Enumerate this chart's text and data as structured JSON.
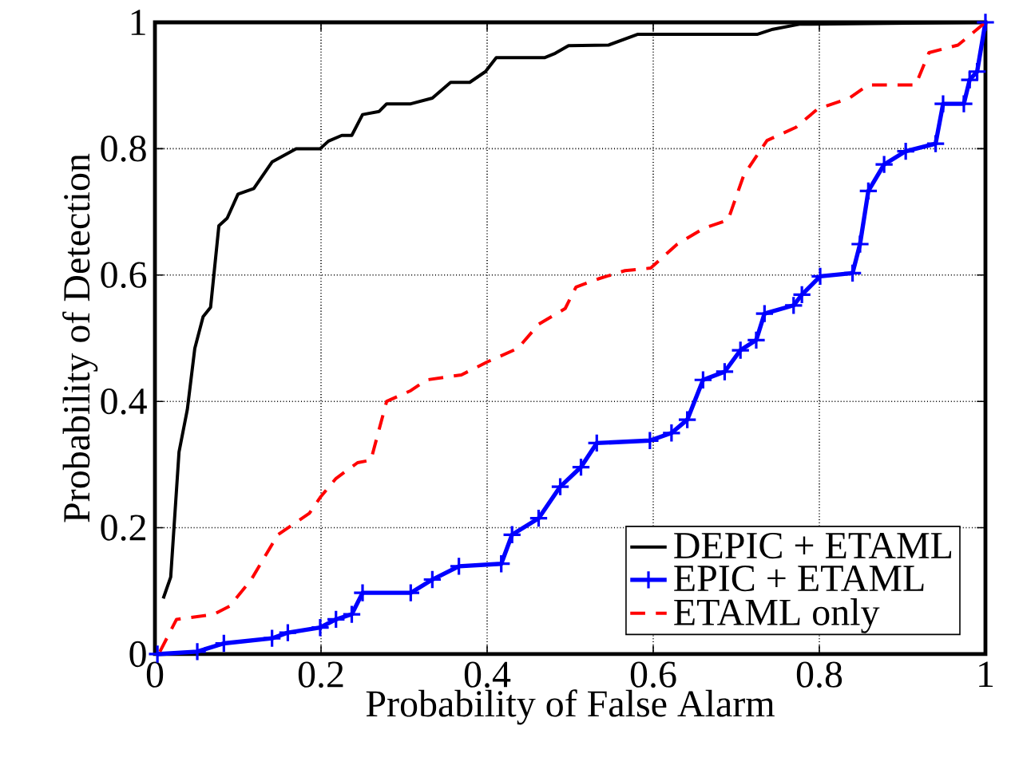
{
  "chart_data": {
    "type": "line",
    "xlabel": "Probability of False Alarm",
    "ylabel": "Probability of Detection",
    "xlim": [
      0,
      1
    ],
    "ylim": [
      0,
      1
    ],
    "xticks": [
      0,
      0.2,
      0.4,
      0.6,
      0.8,
      1
    ],
    "yticks": [
      0,
      0.2,
      0.4,
      0.6,
      0.8,
      1
    ],
    "grid": true,
    "legend": "bottom right",
    "series": [
      {
        "name": "DEPIC + ETAML",
        "color": "#000000",
        "line_style": "solid",
        "marker": "none",
        "x": [
          0.01,
          0.019,
          0.029,
          0.039,
          0.048,
          0.058,
          0.067,
          0.077,
          0.087,
          0.1,
          0.119,
          0.141,
          0.17,
          0.199,
          0.209,
          0.225,
          0.237,
          0.25,
          0.27,
          0.279,
          0.308,
          0.334,
          0.356,
          0.379,
          0.398,
          0.411,
          0.469,
          0.482,
          0.498,
          0.546,
          0.581,
          0.725,
          0.744,
          0.776,
          1
        ],
        "values": [
          0.088,
          0.122,
          0.32,
          0.387,
          0.484,
          0.534,
          0.549,
          0.678,
          0.69,
          0.728,
          0.737,
          0.779,
          0.8,
          0.8,
          0.812,
          0.821,
          0.821,
          0.854,
          0.859,
          0.871,
          0.871,
          0.88,
          0.905,
          0.905,
          0.922,
          0.944,
          0.944,
          0.951,
          0.963,
          0.964,
          0.981,
          0.981,
          0.989,
          0.997,
          1
        ]
      },
      {
        "name": "EPIC + ETAML",
        "color": "#0000ff",
        "line_style": "solid",
        "marker": "cross",
        "x": [
          0.003,
          0.051,
          0.083,
          0.141,
          0.16,
          0.199,
          0.218,
          0.237,
          0.25,
          0.308,
          0.334,
          0.366,
          0.417,
          0.43,
          0.462,
          0.488,
          0.513,
          0.532,
          0.596,
          0.622,
          0.641,
          0.66,
          0.686,
          0.705,
          0.724,
          0.734,
          0.769,
          0.779,
          0.801,
          0.84,
          0.849,
          0.859,
          0.878,
          0.904,
          0.94,
          0.949,
          0.974,
          0.981,
          0.99,
          1
        ],
        "values": [
          0,
          0.004,
          0.017,
          0.025,
          0.034,
          0.042,
          0.055,
          0.063,
          0.097,
          0.097,
          0.118,
          0.139,
          0.143,
          0.189,
          0.215,
          0.265,
          0.296,
          0.334,
          0.338,
          0.35,
          0.371,
          0.434,
          0.447,
          0.481,
          0.497,
          0.539,
          0.552,
          0.569,
          0.598,
          0.603,
          0.649,
          0.733,
          0.775,
          0.796,
          0.808,
          0.871,
          0.871,
          0.909,
          0.922,
          1
        ]
      },
      {
        "name": "ETAML only",
        "color": "#ff0000",
        "line_style": "dashed",
        "marker": "none",
        "x": [
          0.006,
          0.026,
          0.071,
          0.09,
          0.116,
          0.148,
          0.167,
          0.186,
          0.199,
          0.218,
          0.244,
          0.26,
          0.279,
          0.308,
          0.327,
          0.369,
          0.401,
          0.437,
          0.462,
          0.494,
          0.507,
          0.534,
          0.566,
          0.597,
          0.629,
          0.661,
          0.69,
          0.709,
          0.737,
          0.772,
          0.798,
          0.836,
          0.859,
          0.916,
          0.932,
          0.967,
          1
        ],
        "values": [
          0.004,
          0.055,
          0.063,
          0.076,
          0.118,
          0.189,
          0.206,
          0.223,
          0.248,
          0.278,
          0.303,
          0.307,
          0.4,
          0.417,
          0.434,
          0.442,
          0.463,
          0.484,
          0.522,
          0.547,
          0.581,
          0.594,
          0.607,
          0.611,
          0.649,
          0.674,
          0.687,
          0.758,
          0.813,
          0.834,
          0.863,
          0.88,
          0.901,
          0.901,
          0.952,
          0.964,
          1
        ]
      }
    ]
  }
}
